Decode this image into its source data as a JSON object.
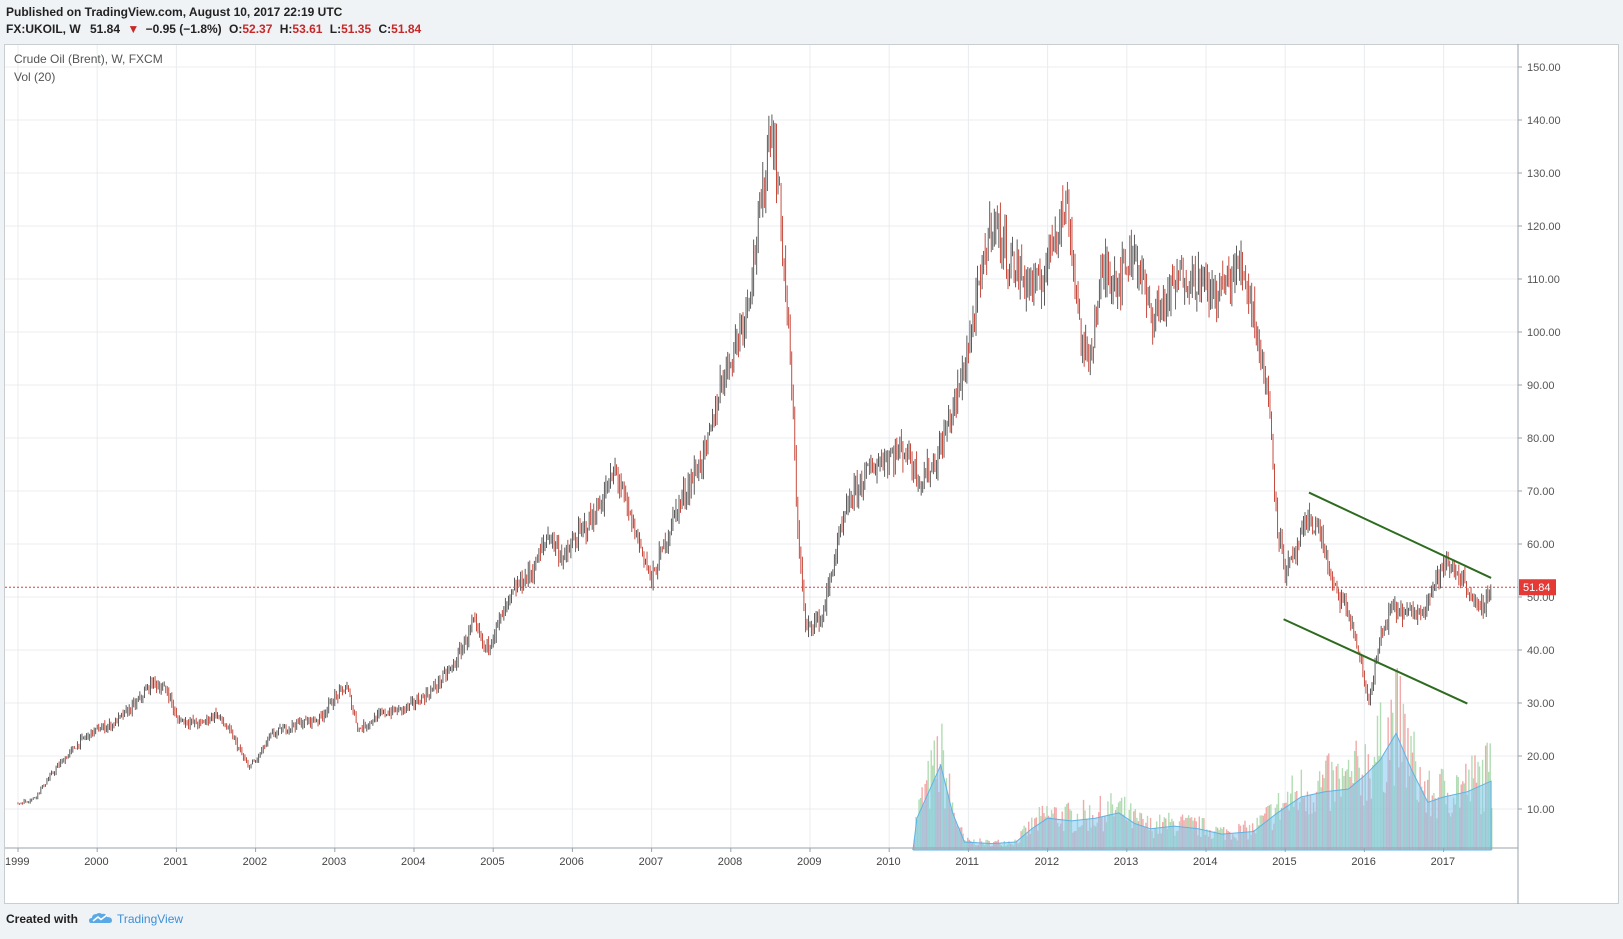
{
  "header": {
    "published": "Published on TradingView.com, August 10, 2017 22:19 UTC",
    "symbol": "FX:UKOIL, W",
    "last": "51.84",
    "change": "−0.95 (−1.8%)",
    "open_label": "O:",
    "open": "52.37",
    "high_label": "H:",
    "high": "53.61",
    "low_label": "L:",
    "low": "51.35",
    "close_label": "C:",
    "close": "51.84"
  },
  "legend": {
    "title": "Crude Oil (Brent), W, FXCM",
    "volume": "Vol (20)"
  },
  "footer": {
    "created_with": "Created with",
    "brand": "TradingView"
  },
  "colors": {
    "up": "#26a69a",
    "down": "#ef5350",
    "candle": "#555555",
    "trendline": "#2e6b1f",
    "price_line": "#e53935",
    "volume_up": "#a5d6a7",
    "volume_down": "#ef9a9a",
    "volume_ma": "#81c8f0",
    "grid": "#e9ecef",
    "brand": "#3a8fd9"
  },
  "icons": {
    "change_arrow": "triangle-down-icon",
    "brand_logo": "tradingview-cloud-icon"
  },
  "chart_data": {
    "type": "candlestick",
    "title": "Crude Oil (Brent), W, FXCM",
    "interval": "W",
    "x_tick_labels": [
      "1999",
      "2000",
      "2001",
      "2002",
      "2003",
      "2004",
      "2005",
      "2006",
      "2007",
      "2008",
      "2009",
      "2010",
      "2011",
      "2012",
      "2013",
      "2014",
      "2015",
      "2016",
      "2017"
    ],
    "y_tick_labels": [
      "10.00",
      "20.00",
      "30.00",
      "40.00",
      "50.00",
      "60.00",
      "70.00",
      "80.00",
      "90.00",
      "100.00",
      "110.00",
      "120.00",
      "130.00",
      "140.00",
      "150.00"
    ],
    "ylim": [
      0,
      155
    ],
    "xlim": [
      1999.0,
      2017.75
    ],
    "grid": true,
    "last_price": 51.84,
    "last_price_label": "51.84",
    "price_path": [
      [
        1999.0,
        11
      ],
      [
        1999.2,
        12
      ],
      [
        1999.5,
        18
      ],
      [
        1999.8,
        23
      ],
      [
        2000.0,
        25
      ],
      [
        2000.2,
        26
      ],
      [
        2000.5,
        30
      ],
      [
        2000.7,
        34
      ],
      [
        2000.9,
        32
      ],
      [
        2001.0,
        27
      ],
      [
        2001.3,
        26
      ],
      [
        2001.5,
        28
      ],
      [
        2001.7,
        24
      ],
      [
        2001.9,
        18
      ],
      [
        2002.0,
        19
      ],
      [
        2002.2,
        24
      ],
      [
        2002.5,
        26
      ],
      [
        2002.8,
        27
      ],
      [
        2003.0,
        31
      ],
      [
        2003.15,
        33
      ],
      [
        2003.3,
        25
      ],
      [
        2003.6,
        28
      ],
      [
        2003.9,
        29
      ],
      [
        2004.2,
        32
      ],
      [
        2004.5,
        37
      ],
      [
        2004.75,
        45
      ],
      [
        2004.9,
        40
      ],
      [
        2005.0,
        43
      ],
      [
        2005.3,
        52
      ],
      [
        2005.5,
        55
      ],
      [
        2005.7,
        62
      ],
      [
        2005.9,
        57
      ],
      [
        2006.0,
        60
      ],
      [
        2006.3,
        66
      ],
      [
        2006.55,
        74
      ],
      [
        2006.7,
        66
      ],
      [
        2006.9,
        58
      ],
      [
        2007.0,
        53
      ],
      [
        2007.3,
        66
      ],
      [
        2007.5,
        72
      ],
      [
        2007.7,
        78
      ],
      [
        2007.9,
        92
      ],
      [
        2008.0,
        95
      ],
      [
        2008.2,
        105
      ],
      [
        2008.4,
        125
      ],
      [
        2008.5,
        140
      ],
      [
        2008.6,
        128
      ],
      [
        2008.75,
        95
      ],
      [
        2008.85,
        62
      ],
      [
        2008.95,
        43
      ],
      [
        2009.0,
        45
      ],
      [
        2009.15,
        46
      ],
      [
        2009.35,
        60
      ],
      [
        2009.5,
        68
      ],
      [
        2009.7,
        73
      ],
      [
        2009.9,
        76
      ],
      [
        2010.2,
        78
      ],
      [
        2010.4,
        72
      ],
      [
        2010.6,
        76
      ],
      [
        2010.9,
        90
      ],
      [
        2011.1,
        105
      ],
      [
        2011.3,
        122
      ],
      [
        2011.5,
        114
      ],
      [
        2011.7,
        110
      ],
      [
        2011.9,
        108
      ],
      [
        2012.1,
        120
      ],
      [
        2012.25,
        124
      ],
      [
        2012.45,
        95
      ],
      [
        2012.55,
        97
      ],
      [
        2012.7,
        112
      ],
      [
        2012.9,
        110
      ],
      [
        2013.1,
        116
      ],
      [
        2013.3,
        103
      ],
      [
        2013.5,
        106
      ],
      [
        2013.7,
        111
      ],
      [
        2013.9,
        110
      ],
      [
        2014.1,
        107
      ],
      [
        2014.3,
        110
      ],
      [
        2014.45,
        113
      ],
      [
        2014.6,
        104
      ],
      [
        2014.8,
        86
      ],
      [
        2014.9,
        64
      ],
      [
        2015.0,
        55
      ],
      [
        2015.1,
        57
      ],
      [
        2015.3,
        65
      ],
      [
        2015.45,
        62
      ],
      [
        2015.6,
        52
      ],
      [
        2015.8,
        47
      ],
      [
        2015.95,
        38
      ],
      [
        2016.05,
        30
      ],
      [
        2016.2,
        42
      ],
      [
        2016.35,
        48
      ],
      [
        2016.5,
        47
      ],
      [
        2016.7,
        47
      ],
      [
        2016.9,
        53
      ],
      [
        2017.0,
        56
      ],
      [
        2017.15,
        55
      ],
      [
        2017.3,
        52
      ],
      [
        2017.45,
        47
      ],
      [
        2017.6,
        51.84
      ]
    ],
    "trendlines": [
      {
        "points": [
          [
            2015.3,
            69.7
          ],
          [
            2017.6,
            53.6
          ]
        ]
      },
      {
        "points": [
          [
            2014.98,
            45.8
          ],
          [
            2017.3,
            29.9
          ]
        ]
      }
    ],
    "volume": {
      "label": "Vol (20)",
      "start": 2010.3,
      "ma_path": [
        [
          2010.3,
          0
        ],
        [
          2010.35,
          6
        ],
        [
          2010.5,
          11
        ],
        [
          2010.65,
          16
        ],
        [
          2010.8,
          7
        ],
        [
          2010.95,
          1.5
        ],
        [
          2011.3,
          1.2
        ],
        [
          2011.6,
          1.5
        ],
        [
          2011.8,
          4
        ],
        [
          2012.0,
          6
        ],
        [
          2012.3,
          5.5
        ],
        [
          2012.6,
          6
        ],
        [
          2012.9,
          7
        ],
        [
          2013.1,
          5
        ],
        [
          2013.3,
          4
        ],
        [
          2013.6,
          4.5
        ],
        [
          2013.9,
          4
        ],
        [
          2014.2,
          3
        ],
        [
          2014.6,
          3.5
        ],
        [
          2014.9,
          7
        ],
        [
          2015.2,
          10
        ],
        [
          2015.5,
          11
        ],
        [
          2015.8,
          11.5
        ],
        [
          2016.0,
          14
        ],
        [
          2016.2,
          17
        ],
        [
          2016.4,
          22
        ],
        [
          2016.6,
          15
        ],
        [
          2016.8,
          9
        ],
        [
          2017.0,
          10
        ],
        [
          2017.3,
          11
        ],
        [
          2017.6,
          13
        ]
      ]
    }
  }
}
